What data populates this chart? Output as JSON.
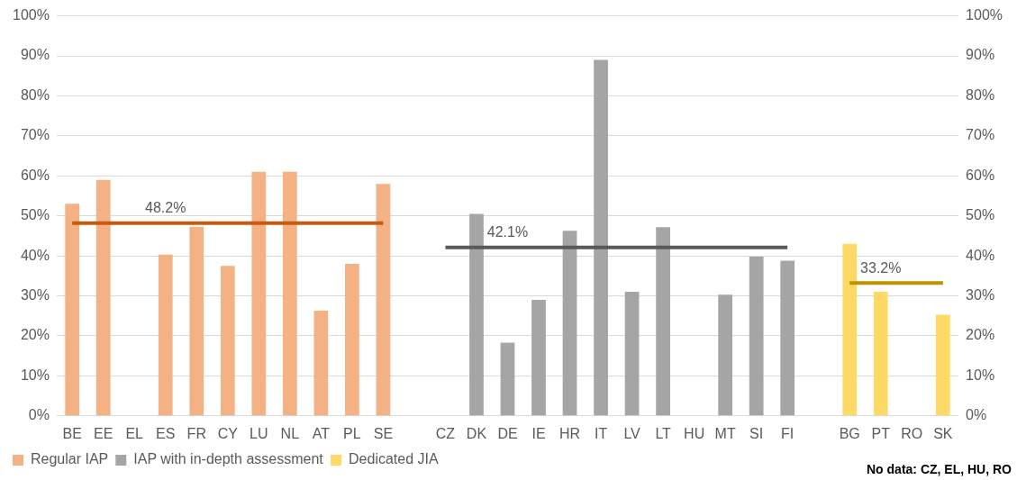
{
  "chart_data": {
    "type": "bar",
    "categories": [
      "BE",
      "EE",
      "EL",
      "ES",
      "FR",
      "CY",
      "LU",
      "NL",
      "AT",
      "PL",
      "SE",
      null,
      "CZ",
      "DK",
      "DE",
      "IE",
      "HR",
      "IT",
      "LV",
      "LT",
      "HU",
      "MT",
      "SI",
      "FI",
      null,
      "BG",
      "PT",
      "RO",
      "SK"
    ],
    "series": [
      {
        "name": "Regular IAP",
        "color": "#f4b183",
        "values": [
          53,
          59,
          null,
          40.3,
          47.3,
          37.5,
          61,
          61,
          26.3,
          38,
          58,
          null,
          null,
          null,
          null,
          null,
          null,
          null,
          null,
          null,
          null,
          null,
          null,
          null,
          null,
          null,
          null,
          null,
          null
        ]
      },
      {
        "name": "IAP with in-depth assessment",
        "color": "#a5a5a5",
        "values": [
          null,
          null,
          null,
          null,
          null,
          null,
          null,
          null,
          null,
          null,
          null,
          null,
          null,
          50.5,
          18.3,
          29,
          46.3,
          89,
          31,
          47.2,
          null,
          30.3,
          39.8,
          38.8,
          null,
          null,
          null,
          null,
          null
        ]
      },
      {
        "name": "Dedicated JIA",
        "color": "#ffd966",
        "values": [
          null,
          null,
          null,
          null,
          null,
          null,
          null,
          null,
          null,
          null,
          null,
          null,
          null,
          null,
          null,
          null,
          null,
          null,
          null,
          null,
          null,
          null,
          null,
          null,
          null,
          43,
          31,
          null,
          25.3
        ]
      },
      {
        "type": "line",
        "color": "#c55a11",
        "values": [
          48.2,
          48.2,
          48.2,
          48.2,
          48.2,
          48.2,
          48.2,
          48.2,
          48.2,
          48.2,
          48.2,
          null,
          null,
          null,
          null,
          null,
          null,
          null,
          null,
          null,
          null,
          null,
          null,
          null,
          null,
          null,
          null,
          null,
          null
        ]
      },
      {
        "type": "line",
        "color": "#595959",
        "values": [
          null,
          null,
          null,
          null,
          null,
          null,
          null,
          null,
          null,
          null,
          null,
          null,
          42.1,
          42.1,
          42.1,
          42.1,
          42.1,
          42.1,
          42.1,
          42.1,
          42.1,
          42.1,
          42.1,
          42.1,
          null,
          null,
          null,
          null,
          null
        ]
      },
      {
        "type": "line",
        "color": "#bf9000",
        "values": [
          null,
          null,
          null,
          null,
          null,
          null,
          null,
          null,
          null,
          null,
          null,
          null,
          null,
          null,
          null,
          null,
          null,
          null,
          null,
          null,
          null,
          null,
          null,
          null,
          null,
          33.2,
          33.2,
          33.2,
          33.2
        ]
      }
    ],
    "ylim": [
      0,
      100
    ],
    "yticks": [
      {
        "value": 0,
        "label": "0%"
      },
      {
        "value": 10,
        "label": "10%"
      },
      {
        "value": 20,
        "label": "20%"
      },
      {
        "value": 30,
        "label": "30%"
      },
      {
        "value": 40,
        "label": "40%"
      },
      {
        "value": 50,
        "label": "50%"
      },
      {
        "value": 60,
        "label": "60%"
      },
      {
        "value": 70,
        "label": "70%"
      },
      {
        "value": 80,
        "label": "80%"
      },
      {
        "value": 90,
        "label": "90%"
      },
      {
        "value": 100,
        "label": "100%"
      }
    ],
    "y2lim": [
      0,
      100
    ],
    "y2ticks": [
      {
        "value": 0,
        "label": "0%"
      },
      {
        "value": 10,
        "label": "10%"
      },
      {
        "value": 20,
        "label": "20%"
      },
      {
        "value": 30,
        "label": "30%"
      },
      {
        "value": 40,
        "label": "40%"
      },
      {
        "value": 50,
        "label": "50%"
      },
      {
        "value": 60,
        "label": "60%"
      },
      {
        "value": 70,
        "label": "70%"
      },
      {
        "value": 80,
        "label": "80%"
      },
      {
        "value": 90,
        "label": "90%"
      },
      {
        "value": 100,
        "label": "100%"
      }
    ],
    "grid": "y",
    "legend": "bottom left",
    "annotations": [
      {
        "text": "48.2%",
        "x": "ES",
        "y": 48.2
      },
      {
        "text": "42.1%",
        "x": "DE",
        "y": 42.1
      },
      {
        "text": "33.2%",
        "x": "PT",
        "y": 33.2
      },
      "No data: CZ, EL, HU, RO"
    ]
  }
}
